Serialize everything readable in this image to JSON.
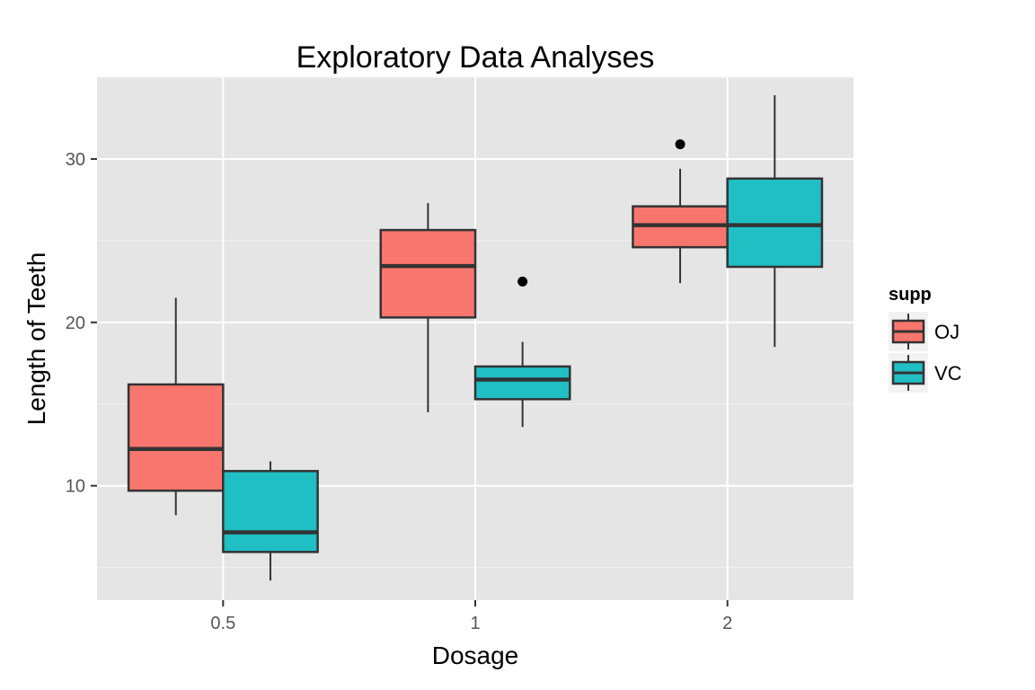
{
  "chart_data": {
    "type": "boxplot",
    "title": "Exploratory Data Analyses",
    "xlabel": "Dosage",
    "ylabel": "Length of Teeth",
    "categories": [
      "0.5",
      "1",
      "2"
    ],
    "ylim": [
      3.0,
      35.0
    ],
    "yticks": [
      10,
      20,
      30
    ],
    "grid": true,
    "legend": {
      "title": "supp",
      "position": "right"
    },
    "series": [
      {
        "name": "OJ",
        "color": "#F8766D",
        "boxes": [
          {
            "category": "0.5",
            "min": 8.2,
            "q1": 9.7,
            "median": 12.25,
            "q3": 16.2,
            "max": 21.5,
            "outliers": []
          },
          {
            "category": "1",
            "min": 14.5,
            "q1": 20.3,
            "median": 23.45,
            "q3": 25.65,
            "max": 27.3,
            "outliers": []
          },
          {
            "category": "2",
            "min": 22.4,
            "q1": 24.6,
            "median": 25.95,
            "q3": 27.1,
            "max": 29.4,
            "outliers": [
              30.9
            ]
          }
        ]
      },
      {
        "name": "VC",
        "color": "#1FBFC4",
        "boxes": [
          {
            "category": "0.5",
            "min": 4.2,
            "q1": 5.95,
            "median": 7.15,
            "q3": 10.9,
            "max": 11.5,
            "outliers": []
          },
          {
            "category": "1",
            "min": 13.6,
            "q1": 15.3,
            "median": 16.5,
            "q3": 17.3,
            "max": 18.8,
            "outliers": [
              22.5
            ]
          },
          {
            "category": "2",
            "min": 18.5,
            "q1": 23.4,
            "median": 25.95,
            "q3": 28.8,
            "max": 33.9,
            "outliers": []
          }
        ]
      }
    ]
  }
}
